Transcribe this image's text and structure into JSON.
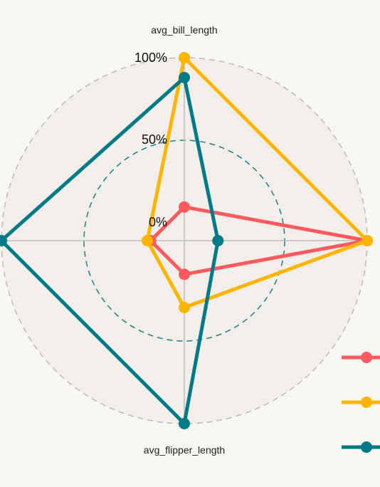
{
  "chart_data": {
    "type": "radar",
    "axes": [
      "avg_bill_length",
      "",
      "avg_flipper_length",
      ""
    ],
    "radial_ticks": [
      "0%",
      "50%",
      "100%"
    ],
    "radial_range": [
      0,
      100
    ],
    "series": [
      {
        "color": "#ff5a5f",
        "values": [
          10,
          100,
          10,
          10
        ]
      },
      {
        "color": "#ffb400",
        "values": [
          100,
          100,
          30,
          12
        ]
      },
      {
        "color": "#007a87",
        "values": [
          88,
          10,
          100,
          100
        ]
      }
    ],
    "legend_placement": "right"
  }
}
